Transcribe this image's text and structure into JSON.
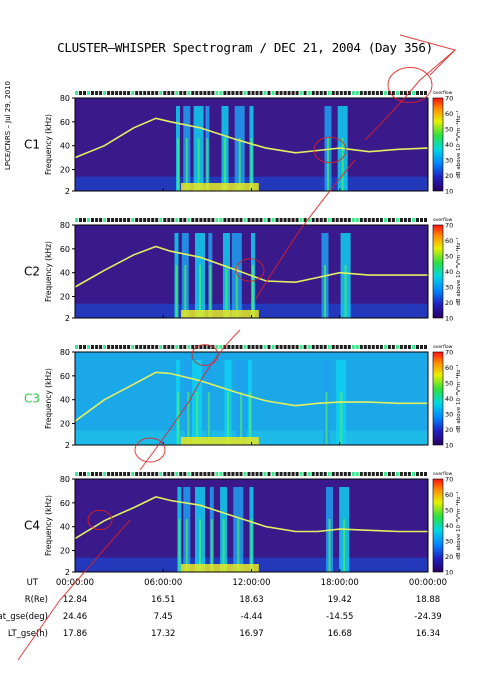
{
  "title": "CLUSTER–WHISPER Spectrogram / DEC 21, 2004 (Day 356)",
  "side_label": "LPCE/CNRS – Jul 29, 2010",
  "colorbar": {
    "top_label": "overflow",
    "unit_label": "dB above 10⁻⁸V²m⁻²Hz⁻¹",
    "ticks": [
      "70",
      "60",
      "50",
      "40",
      "30",
      "20",
      "10"
    ]
  },
  "colors": {
    "c1_label": "#000000",
    "c2_label": "#000000",
    "c3_label": "#2ecc40",
    "c4_label": "#000000",
    "watermark": "#e02020"
  },
  "chart_data": {
    "type": "heatmap",
    "x_axis": {
      "label": "UT",
      "ticks": [
        "00:00:00",
        "06:00:00",
        "12:00:00",
        "18:00:00",
        "00:00:00"
      ]
    },
    "y_axis": {
      "label": "Frequency (kHz)",
      "ticks": [
        "80",
        "60",
        "40",
        "20",
        "2"
      ],
      "ylim": [
        2,
        80
      ]
    },
    "color_scale": {
      "min": 10,
      "max": 70,
      "unit": "dB"
    },
    "panels": [
      {
        "spacecraft": "C1",
        "upper_hybrid_line_kHz": [
          [
            0.0,
            30
          ],
          [
            2.0,
            40
          ],
          [
            4.0,
            55
          ],
          [
            5.5,
            63
          ],
          [
            6.5,
            60
          ],
          [
            8.5,
            55
          ],
          [
            11.0,
            45
          ],
          [
            13.0,
            38
          ],
          [
            15.0,
            34
          ],
          [
            16.5,
            36
          ],
          [
            18.0,
            38
          ],
          [
            20.0,
            35
          ],
          [
            22.0,
            37
          ],
          [
            24.0,
            38
          ]
        ],
        "bursts_hours": [
          7.0,
          7.6,
          8.4,
          9.0,
          10.2,
          11.2,
          12.0,
          17.2,
          18.2
        ]
      },
      {
        "spacecraft": "C2",
        "upper_hybrid_line_kHz": [
          [
            0.0,
            28
          ],
          [
            2.0,
            42
          ],
          [
            4.0,
            55
          ],
          [
            5.5,
            62
          ],
          [
            6.5,
            58
          ],
          [
            8.5,
            53
          ],
          [
            11.0,
            42
          ],
          [
            13.0,
            33
          ],
          [
            15.0,
            32
          ],
          [
            16.5,
            36
          ],
          [
            18.0,
            40
          ],
          [
            20.0,
            38
          ],
          [
            22.0,
            38
          ],
          [
            24.0,
            38
          ]
        ],
        "bursts_hours": [
          6.9,
          7.5,
          8.5,
          9.2,
          10.3,
          11.0,
          12.1,
          17.0,
          18.4
        ]
      },
      {
        "spacecraft": "C3",
        "upper_hybrid_line_kHz": [
          [
            0.0,
            22
          ],
          [
            2.0,
            40
          ],
          [
            4.0,
            53
          ],
          [
            5.5,
            63
          ],
          [
            6.5,
            62
          ],
          [
            8.5,
            56
          ],
          [
            11.0,
            46
          ],
          [
            13.0,
            39
          ],
          [
            15.0,
            35
          ],
          [
            16.5,
            37
          ],
          [
            18.0,
            38
          ],
          [
            20.0,
            38
          ],
          [
            22.0,
            37
          ],
          [
            24.0,
            37
          ]
        ],
        "bursts_hours": [
          7.0,
          7.7,
          8.3,
          9.1,
          10.4,
          11.3,
          11.9,
          17.1,
          18.1
        ]
      },
      {
        "spacecraft": "C4",
        "upper_hybrid_line_kHz": [
          [
            0.0,
            30
          ],
          [
            2.0,
            45
          ],
          [
            4.0,
            56
          ],
          [
            5.5,
            65
          ],
          [
            6.5,
            62
          ],
          [
            8.5,
            58
          ],
          [
            11.0,
            48
          ],
          [
            13.0,
            40
          ],
          [
            15.0,
            36
          ],
          [
            16.5,
            36
          ],
          [
            18.0,
            38
          ],
          [
            20.0,
            37
          ],
          [
            22.0,
            36
          ],
          [
            24.0,
            36
          ]
        ],
        "bursts_hours": [
          7.1,
          7.6,
          8.5,
          9.3,
          10.1,
          11.1,
          12.0,
          17.3,
          18.3
        ]
      }
    ],
    "ephemeris": {
      "rows": [
        {
          "label": "R(Re)",
          "values": [
            "12.84",
            "16.51",
            "18.63",
            "19.42",
            "18.88"
          ]
        },
        {
          "label": "Lat_gse(deg)",
          "values": [
            "24.46",
            "7.45",
            "-4.44",
            "-14.55",
            "-24.39"
          ]
        },
        {
          "label": "LT_gse(h)",
          "values": [
            "17.86",
            "17.32",
            "16.97",
            "16.68",
            "16.34"
          ]
        }
      ]
    }
  }
}
